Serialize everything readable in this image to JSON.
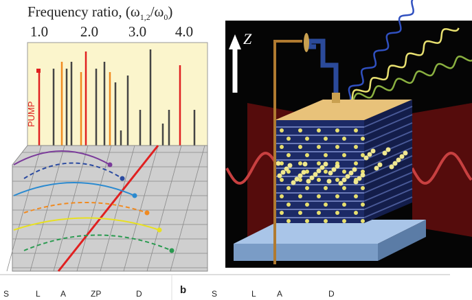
{
  "left_panel": {
    "axis_title": {
      "text": "Frequency ratio, (ω",
      "sub1": "1,2",
      "mid": "/ω",
      "sub2": "0",
      "end": ")"
    },
    "tick_labels": [
      "1.0",
      "2.0",
      "3.0",
      "4.0"
    ],
    "pump_label": "PUMP"
  },
  "right_panel": {
    "axis_label": "Z"
  },
  "bottom_strip": {
    "panel_a_labels": [
      "S",
      "L",
      "A",
      "ZP",
      "D"
    ],
    "panel_b": {
      "letter": "b",
      "labels": [
        "S",
        "L",
        "A",
        "D"
      ]
    }
  }
}
